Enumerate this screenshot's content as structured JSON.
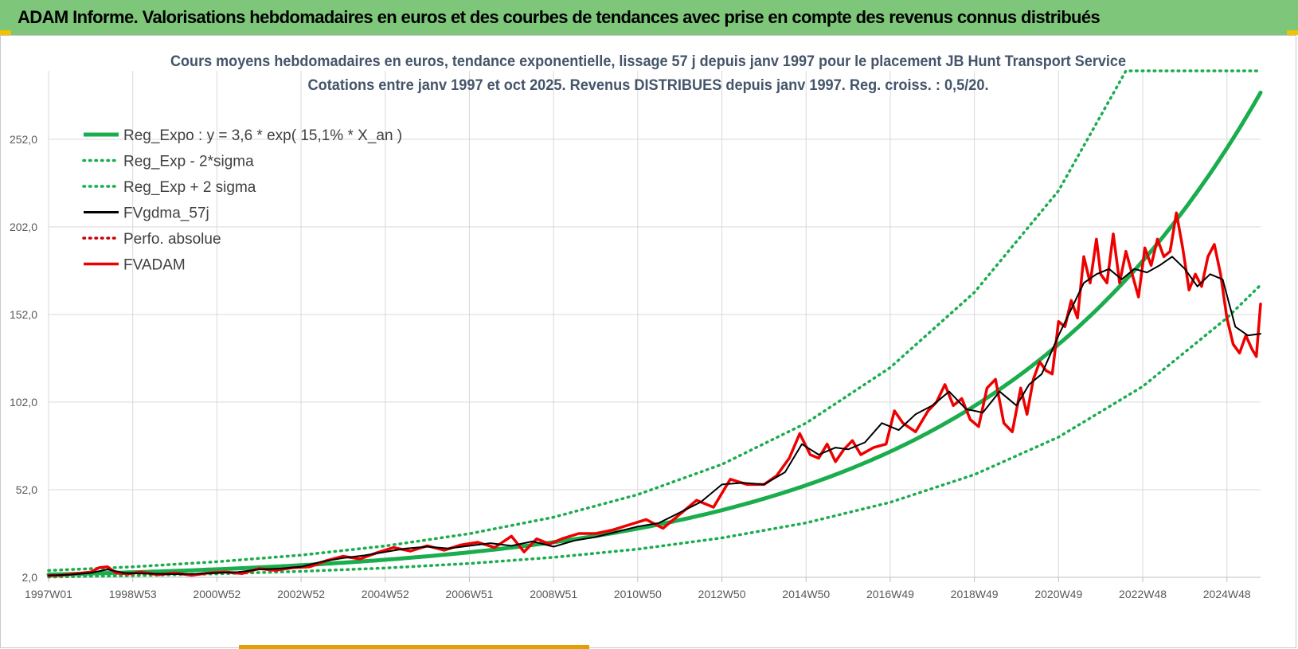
{
  "header": {
    "title": "ADAM Informe. Valorisations hebdomadaires en euros et des courbes de tendances avec prise en compte des revenus connus distribués"
  },
  "colors": {
    "header_bg": "#7dc67a",
    "trend": "#1aad4e",
    "smooth": "#000000",
    "price": "#ee0000",
    "grid": "#d9d9d9"
  },
  "chart_data": {
    "type": "line",
    "title": "Cours moyens hebdomadaires en euros, tendance exponentielle, lissage 57 j depuis janv 1997 pour le placement JB Hunt Transport Service",
    "subtitle": "Cotations entre janv 1997 et oct 2025. Revenus DISTRIBUES depuis janv 1997. Reg. croiss. : 0,5/20.",
    "xlabel": "",
    "ylabel": "",
    "x_range": [
      1997.0,
      2025.8
    ],
    "ylim": [
      2.0,
      291.0
    ],
    "grid": true,
    "legend_position": "top-left",
    "y_ticks": [
      "2,0",
      "52,0",
      "102,0",
      "152,0",
      "202,0",
      "252,0"
    ],
    "y_tick_values": [
      2,
      52,
      102,
      152,
      202,
      252
    ],
    "x_ticks": [
      "1997W01",
      "1998W53",
      "2000W52",
      "2002W52",
      "2004W52",
      "2006W51",
      "2008W51",
      "2010W50",
      "2012W50",
      "2014W50",
      "2016W49",
      "2018W49",
      "2020W49",
      "2022W48",
      "2024W48"
    ],
    "x_tick_values": [
      1997.0,
      1999.0,
      2001.0,
      2003.0,
      2005.0,
      2007.0,
      2009.0,
      2011.0,
      2013.0,
      2015.0,
      2017.0,
      2019.0,
      2021.0,
      2023.0,
      2025.0
    ],
    "series": [
      {
        "name": "Reg_Expo : y = 3,6 * exp( 15,1% *  X_an )",
        "style": "solid-thick",
        "color": "#1aad4e",
        "model": {
          "a": 3.6,
          "rate": 0.151,
          "x0": 1997.0
        },
        "x": [
          1997.0,
          1999.0,
          2001.0,
          2003.0,
          2005.0,
          2007.0,
          2009.0,
          2011.0,
          2013.0,
          2015.0,
          2017.0,
          2019.0,
          2021.0,
          2023.0,
          2025.0,
          2025.8
        ],
        "values": [
          3.6,
          4.9,
          6.6,
          8.9,
          12.0,
          16.3,
          22.0,
          29.8,
          40.3,
          54.5,
          73.8,
          99.8,
          135.0,
          182.5,
          246.9,
          277.8
        ]
      },
      {
        "name": "Reg_Exp - 2*sigma",
        "style": "dotted",
        "color": "#1aad4e",
        "x": [
          1997.0,
          1999.0,
          2001.0,
          2003.0,
          2005.0,
          2007.0,
          2009.0,
          2011.0,
          2013.0,
          2015.0,
          2017.0,
          2019.0,
          2021.0,
          2023.0,
          2025.0,
          2025.8
        ],
        "values": [
          2.2,
          3.0,
          4.0,
          5.4,
          7.3,
          9.9,
          13.4,
          18.1,
          24.5,
          33.1,
          44.8,
          60.6,
          82.0,
          110.9,
          150.0,
          168.8
        ]
      },
      {
        "name": "Reg_Exp + 2 sigma",
        "style": "dotted",
        "color": "#1aad4e",
        "x": [
          1997.0,
          1999.0,
          2001.0,
          2003.0,
          2005.0,
          2007.0,
          2009.0,
          2011.0,
          2013.0,
          2015.0,
          2017.0,
          2019.0,
          2021.0,
          2022.6,
          2023.0,
          2025.0,
          2025.8
        ],
        "values": [
          5.9,
          8.0,
          10.9,
          14.7,
          19.9,
          26.9,
          36.3,
          49.2,
          66.5,
          90.0,
          121.7,
          164.6,
          222.6,
          291.0,
          291.0,
          291.0,
          291.0
        ]
      },
      {
        "name": "FVgdma_57j",
        "style": "solid",
        "color": "#000000",
        "x": [
          1997.0,
          1997.5,
          1998.0,
          1998.4,
          1998.8,
          1999.2,
          1999.6,
          2000.0,
          2000.5,
          2001.0,
          2001.5,
          2002.0,
          2002.5,
          2003.0,
          2003.5,
          2004.0,
          2004.5,
          2005.0,
          2005.5,
          2006.0,
          2006.5,
          2007.0,
          2007.5,
          2008.0,
          2008.5,
          2009.0,
          2009.5,
          2010.0,
          2010.5,
          2011.0,
          2011.5,
          2012.0,
          2012.5,
          2013.0,
          2013.5,
          2014.0,
          2014.5,
          2014.9,
          2015.3,
          2015.7,
          2016.0,
          2016.4,
          2016.8,
          2017.2,
          2017.6,
          2018.0,
          2018.4,
          2018.8,
          2019.2,
          2019.6,
          2020.0,
          2020.3,
          2020.6,
          2021.0,
          2021.3,
          2021.6,
          2021.9,
          2022.2,
          2022.5,
          2022.8,
          2023.1,
          2023.4,
          2023.7,
          2024.0,
          2024.3,
          2024.6,
          2024.9,
          2025.2,
          2025.5,
          2025.8
        ],
        "values": [
          3,
          3.5,
          4.5,
          6.5,
          4.5,
          4.2,
          4.0,
          3.8,
          4.0,
          4.5,
          5.0,
          6.5,
          7.0,
          8.0,
          11.0,
          13.0,
          14.5,
          16.5,
          18.5,
          19.5,
          18.5,
          20.0,
          21.5,
          20.0,
          22.5,
          19.5,
          23.0,
          25.0,
          28.0,
          31.0,
          33.0,
          39.0,
          45.0,
          55.0,
          56.0,
          55.0,
          62.0,
          78.0,
          72.0,
          76.0,
          75.0,
          79.0,
          90.0,
          86.0,
          95.0,
          100.0,
          108.0,
          98.0,
          96.0,
          108.0,
          100.0,
          112.0,
          118.0,
          140.0,
          155.0,
          170.0,
          175.0,
          178.0,
          172.0,
          178.0,
          176.0,
          180.0,
          185.0,
          178.0,
          168.0,
          175.0,
          172.0,
          145.0,
          140.0,
          141.0
        ]
      },
      {
        "name": "Perfo. absolue",
        "style": "dotted",
        "color": "#cc0000",
        "x": [],
        "values": []
      },
      {
        "name": "FVADAM",
        "style": "solid-thick",
        "color": "#ee0000",
        "x": [
          1997.0,
          1997.3,
          1997.6,
          1998.0,
          1998.2,
          1998.4,
          1998.6,
          1998.9,
          1999.2,
          1999.6,
          2000.0,
          2000.4,
          2000.8,
          2001.2,
          2001.6,
          2002.0,
          2002.4,
          2002.8,
          2003.2,
          2003.6,
          2004.0,
          2004.4,
          2004.8,
          2005.2,
          2005.6,
          2006.0,
          2006.4,
          2006.8,
          2007.2,
          2007.6,
          2008.0,
          2008.3,
          2008.6,
          2008.9,
          2009.2,
          2009.6,
          2010.0,
          2010.4,
          2010.8,
          2011.2,
          2011.6,
          2012.0,
          2012.4,
          2012.8,
          2013.2,
          2013.6,
          2014.0,
          2014.3,
          2014.6,
          2014.85,
          2015.1,
          2015.3,
          2015.5,
          2015.7,
          2015.9,
          2016.1,
          2016.3,
          2016.6,
          2016.9,
          2017.1,
          2017.3,
          2017.6,
          2017.9,
          2018.1,
          2018.3,
          2018.5,
          2018.7,
          2018.9,
          2019.1,
          2019.3,
          2019.5,
          2019.7,
          2019.9,
          2020.1,
          2020.25,
          2020.4,
          2020.55,
          2020.7,
          2020.85,
          2021.0,
          2021.15,
          2021.3,
          2021.45,
          2021.6,
          2021.75,
          2021.9,
          2022.0,
          2022.15,
          2022.3,
          2022.45,
          2022.6,
          2022.75,
          2022.9,
          2023.05,
          2023.2,
          2023.35,
          2023.5,
          2023.65,
          2023.8,
          2023.95,
          2024.1,
          2024.25,
          2024.4,
          2024.55,
          2024.7,
          2024.85,
          2025.0,
          2025.15,
          2025.3,
          2025.45,
          2025.6,
          2025.7,
          2025.8
        ],
        "values": [
          3,
          3.2,
          4.0,
          5.0,
          7.5,
          8.0,
          4.5,
          4.0,
          5.0,
          3.5,
          4.5,
          3.2,
          4.5,
          5.0,
          4.2,
          7.0,
          6.0,
          7.5,
          8.0,
          11.5,
          14.0,
          12.5,
          16.0,
          19.0,
          17.0,
          20.0,
          17.5,
          20.5,
          22.0,
          19.0,
          25.5,
          16.5,
          24.0,
          21.0,
          24.0,
          27.0,
          27.0,
          29.0,
          32.0,
          35.0,
          30.0,
          38.0,
          46.0,
          42.0,
          58.0,
          55.0,
          55.0,
          60.0,
          70.0,
          84.0,
          72.0,
          70.0,
          78.0,
          68.0,
          75.0,
          80.0,
          72.0,
          76.0,
          78.0,
          97.0,
          90.0,
          85.0,
          97.0,
          102.0,
          112.0,
          100.0,
          104.0,
          92.0,
          88.0,
          110.0,
          115.0,
          90.0,
          85.0,
          110.0,
          95.0,
          115.0,
          125.0,
          120.0,
          118.0,
          148.0,
          145.0,
          160.0,
          150.0,
          185.0,
          170.0,
          195.0,
          175.0,
          170.0,
          198.0,
          170.0,
          188.0,
          175.0,
          162.0,
          190.0,
          180.0,
          195.0,
          185.0,
          188.0,
          210.0,
          190.0,
          166.0,
          175.0,
          168.0,
          185.0,
          192.0,
          175.0,
          150.0,
          135.0,
          130.0,
          140.0,
          132.0,
          128.0,
          158.0
        ]
      }
    ]
  }
}
